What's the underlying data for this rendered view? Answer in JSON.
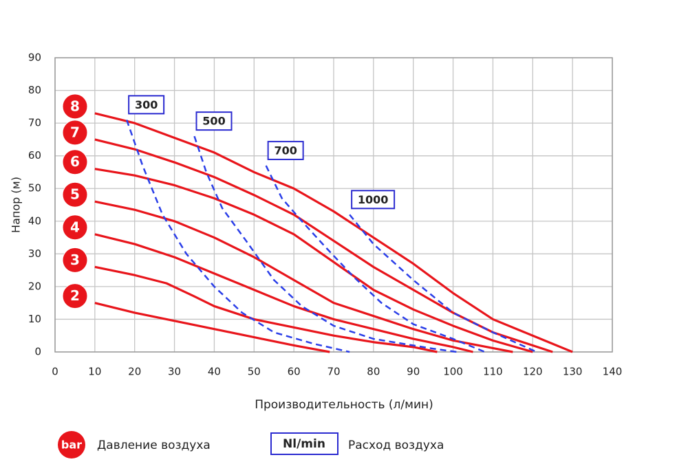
{
  "chart_data": {
    "type": "line",
    "x_label": "Производительность (л/мин)",
    "y_label": "Напор (м)",
    "xlim": [
      0,
      140
    ],
    "ylim": [
      0,
      90
    ],
    "xticks": [
      0,
      10,
      20,
      30,
      40,
      50,
      60,
      70,
      80,
      90,
      100,
      110,
      120,
      130,
      140
    ],
    "yticks": [
      0,
      10,
      20,
      30,
      40,
      50,
      60,
      70,
      80,
      90
    ],
    "grid": true,
    "series": [
      {
        "name": "8",
        "group": "bar",
        "color": "#e8151b",
        "style": "solid",
        "x": [
          10,
          20,
          30,
          40,
          50,
          60,
          70,
          80,
          90,
          100,
          110,
          120,
          130
        ],
        "values": [
          73,
          70,
          65.5,
          61,
          55,
          50,
          43,
          35,
          27,
          18,
          10,
          5,
          0
        ]
      },
      {
        "name": "7",
        "group": "bar",
        "color": "#e8151b",
        "style": "solid",
        "x": [
          10,
          20,
          30,
          40,
          50,
          60,
          70,
          80,
          90,
          100,
          110,
          125
        ],
        "values": [
          65,
          62,
          58,
          53.5,
          48,
          42,
          34,
          26,
          19,
          12,
          6,
          0
        ]
      },
      {
        "name": "6",
        "group": "bar",
        "color": "#e8151b",
        "style": "solid",
        "x": [
          10,
          20,
          30,
          40,
          50,
          60,
          70,
          80,
          90,
          100,
          110,
          120
        ],
        "values": [
          56,
          54,
          51,
          47,
          42,
          36,
          27.5,
          19,
          13,
          8,
          3.5,
          0
        ]
      },
      {
        "name": "5",
        "group": "bar",
        "color": "#e8151b",
        "style": "solid",
        "x": [
          10,
          20,
          30,
          40,
          50,
          60,
          70,
          80,
          90,
          100,
          115
        ],
        "values": [
          46,
          43.5,
          40,
          35,
          29,
          22,
          15,
          11,
          7,
          3.5,
          0
        ]
      },
      {
        "name": "4",
        "group": "bar",
        "color": "#e8151b",
        "style": "solid",
        "x": [
          10,
          20,
          30,
          40,
          50,
          60,
          70,
          80,
          90,
          100,
          105
        ],
        "values": [
          36,
          33,
          29,
          24,
          19,
          14,
          10,
          7,
          4,
          1.5,
          0
        ]
      },
      {
        "name": "3",
        "group": "bar",
        "color": "#e8151b",
        "style": "solid",
        "x": [
          10,
          20,
          28,
          35,
          40,
          50,
          60,
          70,
          80,
          90,
          96
        ],
        "values": [
          26,
          23.5,
          21,
          17,
          14,
          10,
          7.5,
          5,
          3,
          1.5,
          0
        ]
      },
      {
        "name": "2",
        "group": "bar",
        "color": "#e8151b",
        "style": "solid",
        "x": [
          10,
          20,
          30,
          40,
          50,
          60,
          69
        ],
        "values": [
          15,
          12,
          9.5,
          7,
          4.5,
          2,
          0
        ]
      },
      {
        "name": "300",
        "group": "flow",
        "color": "#2a3ee8",
        "style": "dashed",
        "x": [
          18,
          22,
          27,
          33,
          40,
          47,
          55,
          65,
          74
        ],
        "values": [
          71,
          57,
          42,
          30,
          20,
          12,
          6,
          2.5,
          0
        ]
      },
      {
        "name": "500",
        "group": "flow",
        "color": "#2a3ee8",
        "style": "dashed",
        "x": [
          35,
          38,
          42,
          48,
          55,
          62,
          70,
          80,
          95,
          101
        ],
        "values": [
          66,
          55,
          44,
          34,
          22,
          14,
          8,
          4,
          1,
          0
        ]
      },
      {
        "name": "700",
        "group": "flow",
        "color": "#2a3ee8",
        "style": "dashed",
        "x": [
          53,
          57,
          62,
          68,
          75,
          82,
          90,
          100,
          108
        ],
        "values": [
          57,
          47,
          40,
          32,
          23,
          15,
          8.5,
          4,
          0
        ]
      },
      {
        "name": "1000",
        "group": "flow",
        "color": "#2a3ee8",
        "style": "dashed",
        "x": [
          74,
          80,
          90,
          100,
          110,
          121
        ],
        "values": [
          42,
          33,
          22,
          12,
          6,
          0
        ]
      }
    ],
    "legend": [
      {
        "symbol": "bar",
        "label": "Давление воздуха"
      },
      {
        "symbol": "Nl/min",
        "label": "Расход воздуха"
      }
    ]
  }
}
